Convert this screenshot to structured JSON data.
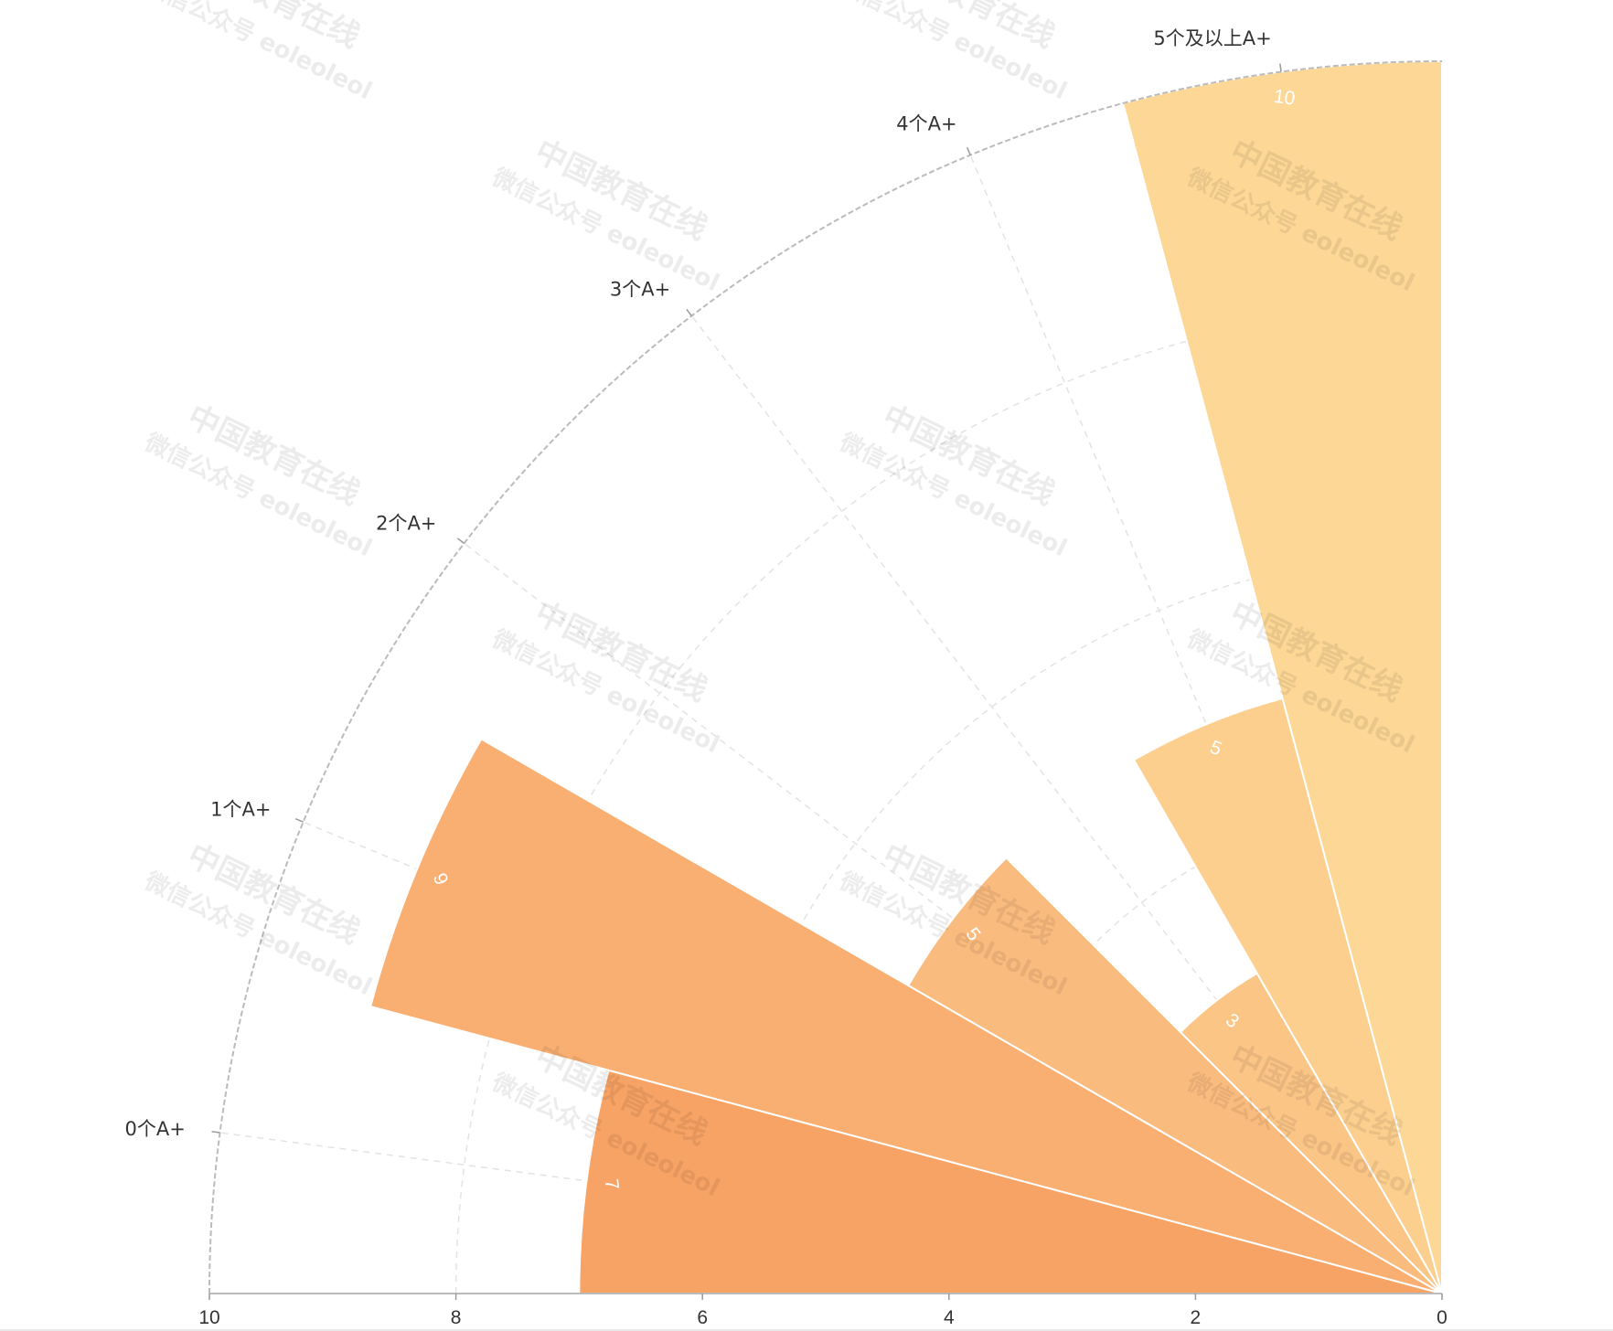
{
  "chart_data": {
    "type": "polar-bar",
    "categories": [
      "0个A+",
      "1个A+",
      "2个A+",
      "3个A+",
      "4个A+",
      "5个及以上A+"
    ],
    "values": [
      7,
      9,
      5,
      3,
      5,
      10
    ],
    "colors": [
      "#F7A365",
      "#F9AF72",
      "#FABB7E",
      "#FBC586",
      "#FCCF8F",
      "#FCD796"
    ],
    "radius_axis": {
      "min": 0,
      "max": 10,
      "ticks": [
        10,
        8,
        6,
        4,
        2,
        0
      ]
    },
    "angle_range_degrees": [
      0,
      90
    ],
    "title": "",
    "grid": true,
    "show_value_labels": true
  },
  "watermark": {
    "line1": "中国教育在线",
    "line2": "微信公众号 eoleoleol"
  }
}
